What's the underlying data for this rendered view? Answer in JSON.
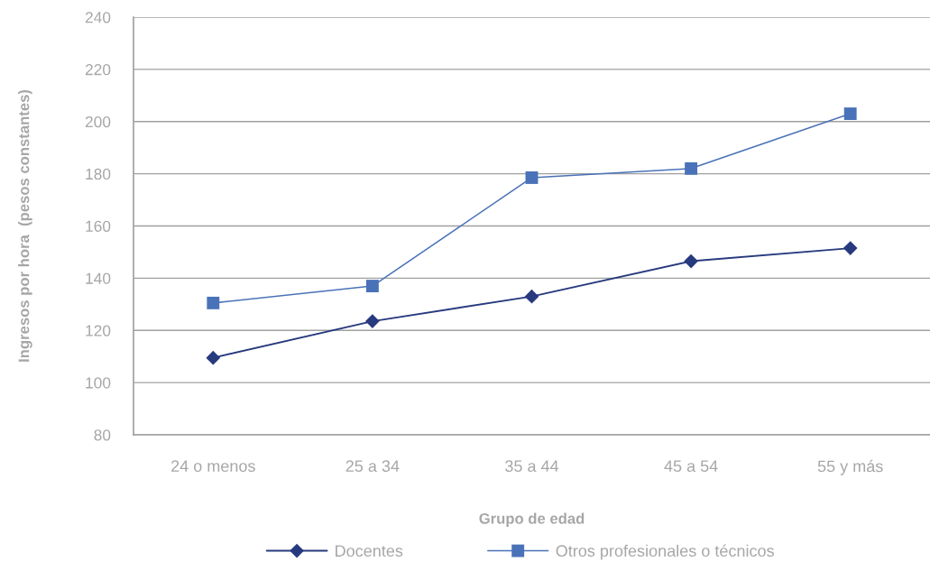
{
  "chart_data": {
    "type": "line",
    "xlabel": "Grupo de edad",
    "ylabel": "Ingresos por hora  (pesos constantes)",
    "categories": [
      "24 o menos",
      "25 a 34",
      "35 a 44",
      "45 a 54",
      "55 y más"
    ],
    "series": [
      {
        "name": "Docentes",
        "color": "#283a7e",
        "marker": "diamond",
        "values": [
          109.5,
          123.5,
          133,
          146.5,
          151.5
        ]
      },
      {
        "name": "Otros profesionales o técnicos",
        "color": "#4a72b8",
        "marker": "square",
        "values": [
          130.5,
          137,
          178.5,
          182,
          203
        ]
      }
    ],
    "ylim": [
      80,
      240
    ],
    "yticks": [
      80,
      100,
      120,
      140,
      160,
      180,
      200,
      220,
      240
    ],
    "grid": "y",
    "legend": "bottom",
    "line_style": "solid"
  }
}
